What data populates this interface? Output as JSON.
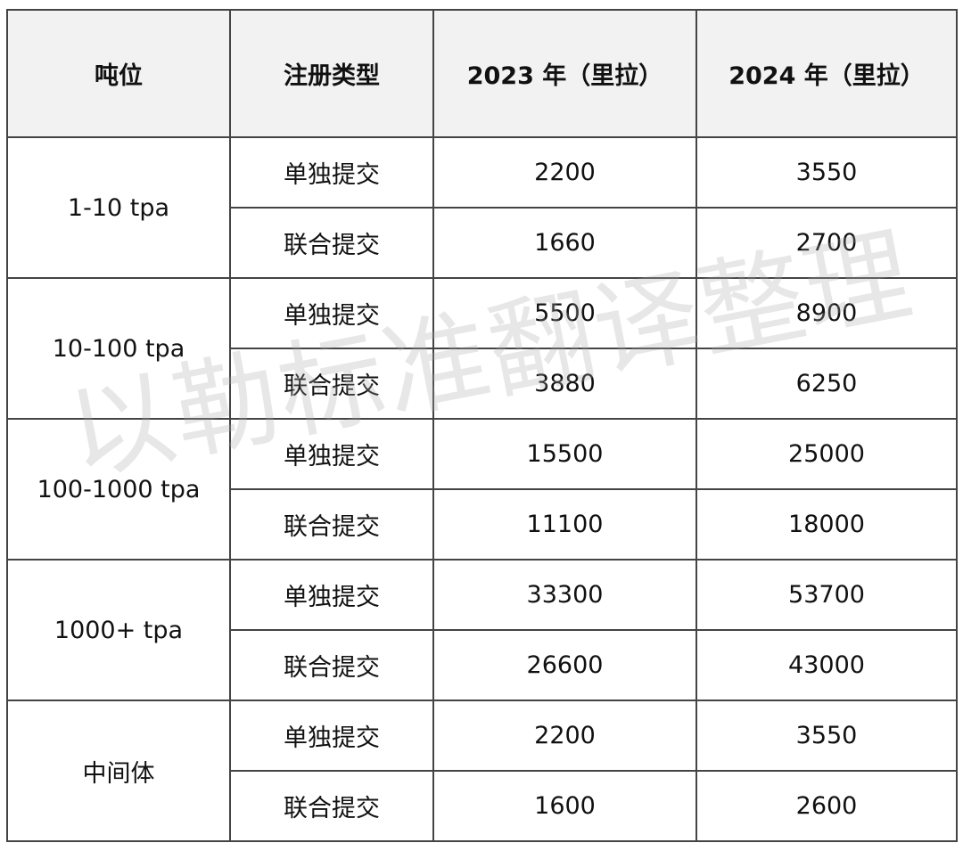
{
  "headers": [
    "吨位",
    "注册类型",
    "2023 年（里拉）",
    "2024 年（里拉）"
  ],
  "groups": [
    {
      "tonnage": "1-10 tpa",
      "rows": [
        {
          "type": "单独提交",
          "y2023": "2200",
          "y2024": "3550"
        },
        {
          "type": "联合提交",
          "y2023": "1660",
          "y2024": "2700"
        }
      ]
    },
    {
      "tonnage": "10-100 tpa",
      "rows": [
        {
          "type": "单独提交",
          "y2023": "5500",
          "y2024": "8900"
        },
        {
          "type": "联合提交",
          "y2023": "3880",
          "y2024": "6250"
        }
      ]
    },
    {
      "tonnage": "100-1000 tpa",
      "rows": [
        {
          "type": "单独提交",
          "y2023": "15500",
          "y2024": "25000"
        },
        {
          "type": "联合提交",
          "y2023": "11100",
          "y2024": "18000"
        }
      ]
    },
    {
      "tonnage": "1000+ tpa",
      "rows": [
        {
          "type": "单独提交",
          "y2023": "33300",
          "y2024": "53700"
        },
        {
          "type": "联合提交",
          "y2023": "26600",
          "y2024": "43000"
        }
      ]
    },
    {
      "tonnage": "中间体",
      "rows": [
        {
          "type": "单独提交",
          "y2023": "2200",
          "y2024": "3550"
        },
        {
          "type": "联合提交",
          "y2023": "1600",
          "y2024": "2600"
        }
      ]
    }
  ],
  "watermark": "以勒标准翻译整理"
}
